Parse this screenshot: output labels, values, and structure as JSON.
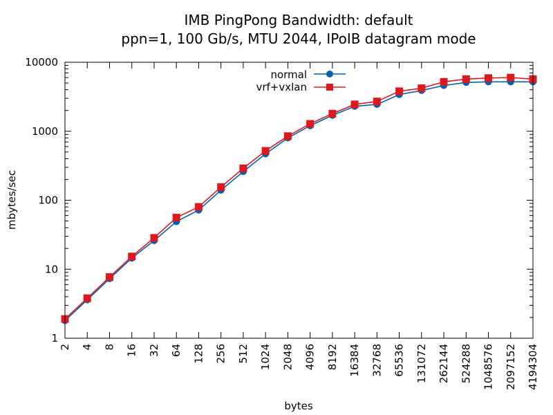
{
  "chart_data": {
    "type": "line",
    "title_line1": "IMB PingPong Bandwidth: default",
    "title_line2": "ppn=1, 100 Gb/s, MTU 2044, IPoIB datagram mode",
    "xlabel": "bytes",
    "ylabel": "mbytes/sec",
    "xscale": "log2",
    "yscale": "log10",
    "xlim": [
      2,
      4194304
    ],
    "ylim": [
      1,
      10000
    ],
    "x": [
      2,
      4,
      8,
      16,
      32,
      64,
      128,
      256,
      512,
      1024,
      2048,
      4096,
      8192,
      16384,
      32768,
      65536,
      131072,
      262144,
      524288,
      1048576,
      2097152,
      4194304
    ],
    "x_tick_labels": [
      "2",
      "4",
      "8",
      "16",
      "32",
      "64",
      "128",
      "256",
      "512",
      "1024",
      "2048",
      "4096",
      "8192",
      "16384",
      "32768",
      "65536",
      "131072",
      "262144",
      "524288",
      "1048576",
      "2097152",
      "4194304"
    ],
    "y_ticks": [
      1,
      10,
      100,
      1000,
      10000
    ],
    "y_tick_labels": [
      "1",
      "10",
      "100",
      "1000",
      "10000"
    ],
    "legend_position": "top-center",
    "series": [
      {
        "name": "normal",
        "color": "#0060ad",
        "marker": "circle",
        "values": [
          1.8,
          3.6,
          7.3,
          14.5,
          26,
          49,
          72,
          140,
          260,
          470,
          800,
          1200,
          1700,
          2300,
          2450,
          3400,
          3900,
          4600,
          5100,
          5200,
          5200,
          5200
        ]
      },
      {
        "name": "vrf+vxlan",
        "color": "#dd181f",
        "marker": "square",
        "values": [
          1.9,
          3.8,
          7.7,
          15.3,
          28.5,
          56,
          80,
          155,
          290,
          520,
          850,
          1280,
          1800,
          2450,
          2700,
          3800,
          4200,
          5200,
          5700,
          5900,
          6000,
          5700
        ]
      }
    ]
  }
}
